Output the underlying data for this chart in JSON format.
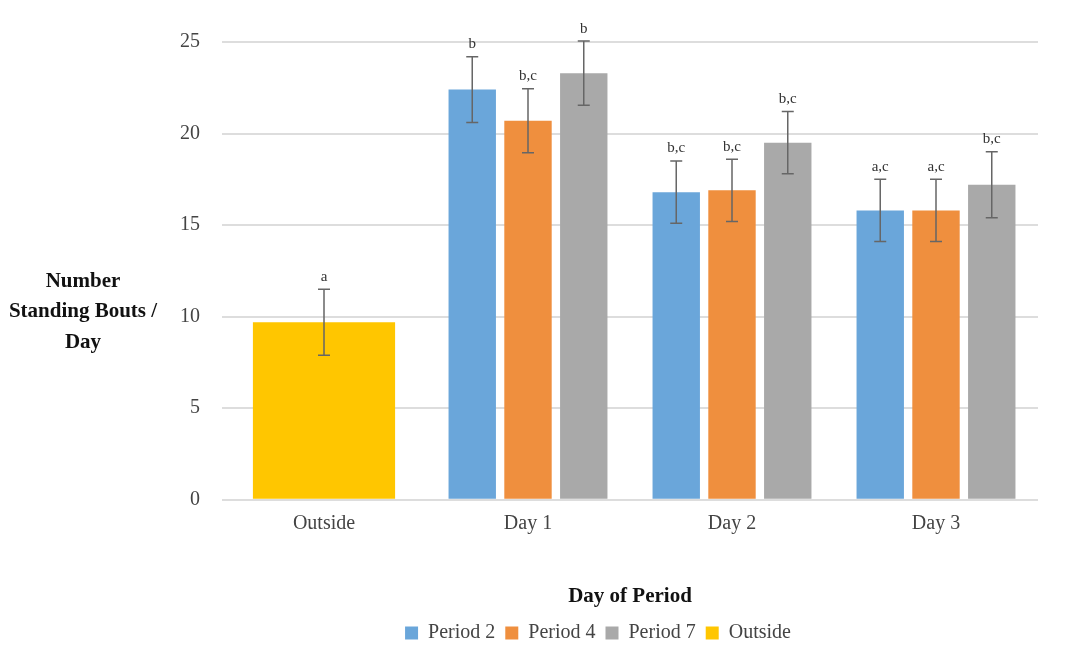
{
  "chart_data": {
    "type": "bar",
    "xlabel": "Day of Period",
    "ylabel": "Number Standing Bouts / Day",
    "categories": [
      "Outside",
      "Day 1",
      "Day 2",
      "Day 3"
    ],
    "series": [
      {
        "name": "Period 2",
        "color": "#6aa6da",
        "values": [
          null,
          22.4,
          16.8,
          15.8
        ],
        "errors": [
          null,
          1.8,
          1.7,
          1.7
        ],
        "value_labels": [
          null,
          "b",
          "b,c",
          "a,c"
        ]
      },
      {
        "name": "Period 4",
        "color": "#ef8f3e",
        "values": [
          null,
          20.7,
          16.9,
          15.8
        ],
        "errors": [
          null,
          1.75,
          1.7,
          1.7
        ],
        "value_labels": [
          null,
          "b,c",
          "b,c",
          "a,c"
        ]
      },
      {
        "name": "Period 7",
        "color": "#a9a9a9",
        "values": [
          null,
          23.3,
          19.5,
          17.2
        ],
        "errors": [
          null,
          1.75,
          1.7,
          1.8
        ],
        "value_labels": [
          null,
          "b",
          "b,c",
          "b,c"
        ]
      },
      {
        "name": "Outside",
        "color": "#ffc600",
        "values": [
          9.7,
          null,
          null,
          null
        ],
        "errors": [
          1.8,
          null,
          null,
          null
        ],
        "value_labels": [
          "a",
          null,
          null,
          null
        ]
      }
    ],
    "ylim": [
      0,
      25
    ],
    "yticks": [
      0,
      5,
      10,
      15,
      20,
      25
    ],
    "grid": "y",
    "legend": "bottom"
  }
}
